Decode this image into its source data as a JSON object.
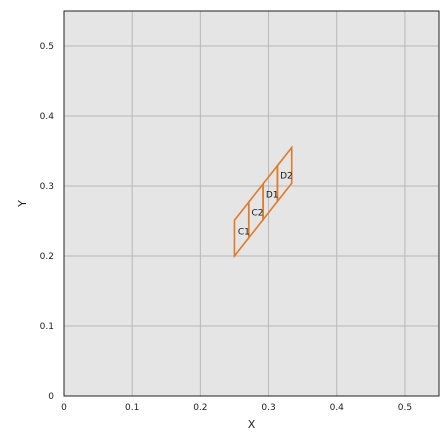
{
  "chart_data": {
    "type": "line",
    "xlabel": "X",
    "ylabel": "Y",
    "xlim": [
      0,
      0.55
    ],
    "ylim": [
      0,
      0.55
    ],
    "xticks": [
      0,
      0.1,
      0.2,
      0.3,
      0.4,
      0.5
    ],
    "yticks": [
      0,
      0.1,
      0.2,
      0.3,
      0.4,
      0.5
    ],
    "xtick_labels": [
      "0",
      "0.1",
      "0.2",
      "0.3",
      "0.4",
      "0.5"
    ],
    "ytick_labels": [
      "0",
      "0.1",
      "0.2",
      "0.3",
      "0.4",
      "0.5"
    ],
    "grid": true,
    "colors": {
      "plot_background": "#e5e5e5",
      "grid": "#b8b8b8",
      "frame": "#222222",
      "cells": "#e07b2a"
    },
    "cells": [
      {
        "label": "C1",
        "corners": [
          [
            0.25,
            0.2
          ],
          [
            0.271,
            0.226
          ],
          [
            0.271,
            0.277
          ],
          [
            0.25,
            0.251
          ]
        ],
        "label_pos": [
          0.255,
          0.235
        ]
      },
      {
        "label": "C2",
        "corners": [
          [
            0.271,
            0.226
          ],
          [
            0.292,
            0.252
          ],
          [
            0.292,
            0.303
          ],
          [
            0.271,
            0.277
          ]
        ],
        "label_pos": [
          0.275,
          0.262
        ]
      },
      {
        "label": "D1",
        "corners": [
          [
            0.292,
            0.252
          ],
          [
            0.313,
            0.278
          ],
          [
            0.313,
            0.329
          ],
          [
            0.292,
            0.303
          ]
        ],
        "label_pos": [
          0.296,
          0.288
        ]
      },
      {
        "label": "D2",
        "corners": [
          [
            0.313,
            0.278
          ],
          [
            0.334,
            0.304
          ],
          [
            0.334,
            0.355
          ],
          [
            0.313,
            0.329
          ]
        ],
        "label_pos": [
          0.317,
          0.315
        ]
      }
    ]
  }
}
